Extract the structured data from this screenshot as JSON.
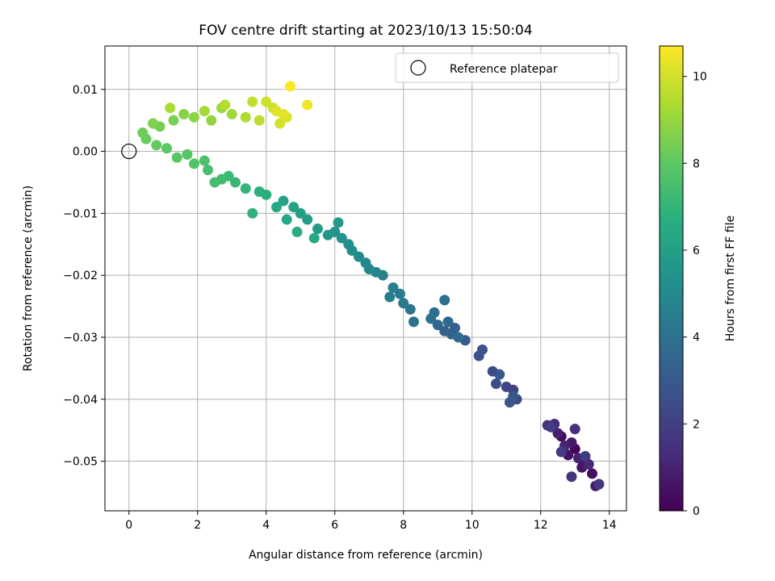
{
  "chart_data": {
    "type": "scatter",
    "title": "FOV centre drift starting at 2023/10/13 15:50:04",
    "xlabel": "Angular distance from reference (arcmin)",
    "ylabel": "Rotation from reference (arcmin)",
    "xlim": [
      -0.7,
      14.5
    ],
    "ylim": [
      -0.058,
      0.017
    ],
    "x_ticks": [
      0,
      2,
      4,
      6,
      8,
      10,
      12,
      14
    ],
    "x_tick_labels": [
      "0",
      "2",
      "4",
      "6",
      "8",
      "10",
      "12",
      "14"
    ],
    "y_ticks": [
      0.01,
      0.0,
      -0.01,
      -0.02,
      -0.03,
      -0.04,
      -0.05
    ],
    "y_tick_labels": [
      "0.01",
      "0.00",
      "−0.01",
      "−0.02",
      "−0.03",
      "−0.04",
      "−0.05"
    ],
    "grid": true,
    "colormap": "viridis",
    "colorbar": {
      "label": "Hours from first FF file",
      "range": [
        0,
        10.7
      ],
      "ticks": [
        0,
        2,
        4,
        6,
        8,
        10
      ],
      "tick_labels": [
        "0",
        "2",
        "4",
        "6",
        "8",
        "10"
      ]
    },
    "legend": {
      "position": "top-right",
      "entries": [
        {
          "label": "Reference platepar",
          "marker": "open-circle"
        }
      ]
    },
    "reference_point": {
      "x": 0,
      "y": 0
    },
    "series": [
      {
        "points": [
          [
            13.0,
            -0.048,
            0.1
          ],
          [
            13.3,
            -0.05,
            0.2
          ],
          [
            12.6,
            -0.046,
            0.3
          ],
          [
            13.5,
            -0.052,
            0.4
          ],
          [
            12.8,
            -0.049,
            0.5
          ],
          [
            13.2,
            -0.051,
            0.6
          ],
          [
            12.9,
            -0.047,
            0.7
          ],
          [
            13.6,
            -0.054,
            0.8
          ],
          [
            12.5,
            -0.0455,
            0.9
          ],
          [
            13.1,
            -0.0495,
            1.0
          ],
          [
            12.7,
            -0.0475,
            1.1
          ],
          [
            13.4,
            -0.0505,
            1.2
          ],
          [
            12.4,
            -0.044,
            1.3
          ],
          [
            13.0,
            -0.0448,
            1.4
          ],
          [
            12.2,
            -0.0442,
            1.5
          ],
          [
            12.9,
            -0.0525,
            1.6
          ],
          [
            13.7,
            -0.0537,
            1.7
          ],
          [
            12.6,
            -0.0485,
            1.8
          ],
          [
            13.3,
            -0.0492,
            1.9
          ],
          [
            12.3,
            -0.0445,
            2.0
          ],
          [
            11.2,
            -0.0385,
            2.1
          ],
          [
            11.0,
            -0.038,
            2.2
          ],
          [
            11.3,
            -0.04,
            2.3
          ],
          [
            10.6,
            -0.0355,
            2.4
          ],
          [
            10.7,
            -0.0375,
            2.5
          ],
          [
            10.2,
            -0.033,
            2.6
          ],
          [
            10.3,
            -0.032,
            2.7
          ],
          [
            11.1,
            -0.0405,
            2.8
          ],
          [
            10.8,
            -0.036,
            2.9
          ],
          [
            11.2,
            -0.0395,
            3.0
          ],
          [
            9.8,
            -0.0305,
            3.1
          ],
          [
            9.5,
            -0.0285,
            3.2
          ],
          [
            9.2,
            -0.029,
            3.3
          ],
          [
            9.4,
            -0.0295,
            3.4
          ],
          [
            9.0,
            -0.028,
            3.5
          ],
          [
            9.3,
            -0.0275,
            3.6
          ],
          [
            9.6,
            -0.03,
            3.7
          ],
          [
            9.2,
            -0.024,
            3.8
          ],
          [
            8.9,
            -0.026,
            3.9
          ],
          [
            8.8,
            -0.027,
            4.0
          ],
          [
            8.3,
            -0.0275,
            4.1
          ],
          [
            8.2,
            -0.0255,
            4.2
          ],
          [
            8.0,
            -0.0245,
            4.3
          ],
          [
            7.9,
            -0.023,
            4.4
          ],
          [
            7.6,
            -0.0235,
            4.5
          ],
          [
            7.7,
            -0.022,
            4.6
          ],
          [
            7.4,
            -0.02,
            4.7
          ],
          [
            7.2,
            -0.0195,
            4.8
          ],
          [
            7.0,
            -0.019,
            4.9
          ],
          [
            6.9,
            -0.018,
            5.0
          ],
          [
            6.7,
            -0.017,
            5.1
          ],
          [
            6.5,
            -0.016,
            5.2
          ],
          [
            6.4,
            -0.015,
            5.3
          ],
          [
            6.2,
            -0.014,
            5.4
          ],
          [
            6.0,
            -0.013,
            5.5
          ],
          [
            5.8,
            -0.0135,
            5.6
          ],
          [
            6.1,
            -0.0115,
            5.7
          ],
          [
            5.5,
            -0.0125,
            5.8
          ],
          [
            5.2,
            -0.011,
            5.9
          ],
          [
            5.0,
            -0.01,
            6.0
          ],
          [
            4.8,
            -0.009,
            6.1
          ],
          [
            4.5,
            -0.008,
            6.2
          ],
          [
            4.6,
            -0.011,
            6.3
          ],
          [
            4.3,
            -0.009,
            6.4
          ],
          [
            5.4,
            -0.014,
            6.5
          ],
          [
            4.9,
            -0.013,
            6.6
          ],
          [
            4.0,
            -0.007,
            6.7
          ],
          [
            3.8,
            -0.0065,
            6.8
          ],
          [
            3.6,
            -0.01,
            6.9
          ],
          [
            3.4,
            -0.006,
            7.0
          ],
          [
            3.1,
            -0.005,
            7.1
          ],
          [
            2.9,
            -0.004,
            7.2
          ],
          [
            2.7,
            -0.0045,
            7.3
          ],
          [
            2.5,
            -0.005,
            7.4
          ],
          [
            2.3,
            -0.003,
            7.5
          ],
          [
            2.2,
            -0.0015,
            7.6
          ],
          [
            1.9,
            -0.002,
            7.7
          ],
          [
            1.7,
            -0.0005,
            7.8
          ],
          [
            1.4,
            -0.001,
            7.9
          ],
          [
            1.1,
            0.0005,
            8.0
          ],
          [
            0.8,
            0.001,
            8.1
          ],
          [
            0.5,
            0.002,
            8.2
          ],
          [
            0.4,
            0.003,
            8.3
          ],
          [
            0.9,
            0.004,
            8.4
          ],
          [
            1.3,
            0.005,
            8.5
          ],
          [
            0.7,
            0.0045,
            8.6
          ],
          [
            1.6,
            0.006,
            8.7
          ],
          [
            1.9,
            0.0055,
            8.8
          ],
          [
            2.4,
            0.005,
            8.9
          ],
          [
            2.7,
            0.007,
            9.0
          ],
          [
            3.0,
            0.006,
            9.1
          ],
          [
            2.2,
            0.0065,
            9.2
          ],
          [
            1.2,
            0.007,
            9.3
          ],
          [
            3.4,
            0.0055,
            9.4
          ],
          [
            2.8,
            0.0075,
            9.5
          ],
          [
            3.8,
            0.005,
            9.6
          ],
          [
            3.6,
            0.008,
            9.7
          ],
          [
            4.2,
            0.007,
            9.8
          ],
          [
            4.0,
            0.008,
            9.9
          ],
          [
            4.4,
            0.0045,
            10.0
          ],
          [
            4.6,
            0.0055,
            10.1
          ],
          [
            4.3,
            0.0065,
            10.2
          ],
          [
            4.5,
            0.006,
            10.3
          ],
          [
            5.2,
            0.0075,
            10.5
          ],
          [
            4.7,
            0.0105,
            10.7
          ]
        ]
      }
    ]
  }
}
